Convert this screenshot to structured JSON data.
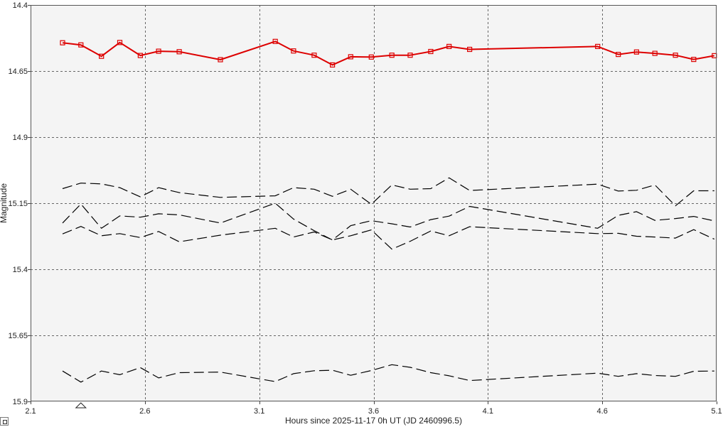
{
  "chart_data": {
    "type": "line",
    "title": "",
    "xlabel": "Hours since 2025-11-17 0h UT (JD 2460996.5)",
    "ylabel": "Magnitude",
    "xlim": [
      2.1,
      5.1
    ],
    "ylim": [
      14.4,
      15.9
    ],
    "y_inverted": true,
    "x_ticks": [
      "2.1",
      "2.6",
      "3.1",
      "3.6",
      "4.1",
      "4.6",
      "5.1"
    ],
    "y_ticks": [
      "14.4",
      "14.65",
      "14.9",
      "15.15",
      "15.4",
      "15.65",
      "15.9"
    ],
    "grid": true,
    "marker_x": 2.32,
    "colors": {
      "target": "#dd0000",
      "comparison": "#000000",
      "plot_background": "#f4f4f4"
    },
    "series": [
      {
        "style": "solid-square-markers",
        "color": "#dd0000",
        "x": [
          2.24,
          2.32,
          2.41,
          2.49,
          2.58,
          2.66,
          2.75,
          2.93,
          3.17,
          3.25,
          3.34,
          3.42,
          3.5,
          3.59,
          3.68,
          3.76,
          3.85,
          3.93,
          4.02,
          4.58,
          4.67,
          4.75,
          4.83,
          4.92,
          5.0,
          5.09
        ],
        "y": [
          14.543,
          14.551,
          14.594,
          14.542,
          14.591,
          14.575,
          14.577,
          14.607,
          14.538,
          14.574,
          14.59,
          14.627,
          14.596,
          14.597,
          14.59,
          14.59,
          14.576,
          14.557,
          14.568,
          14.557,
          14.587,
          14.578,
          14.583,
          14.59,
          14.606,
          14.592
        ]
      },
      {
        "style": "dashed",
        "color": "#000000",
        "x": [
          2.24,
          2.32,
          2.41,
          2.49,
          2.58,
          2.66,
          2.75,
          2.93,
          3.17,
          3.25,
          3.34,
          3.42,
          3.5,
          3.59,
          3.68,
          3.76,
          3.85,
          3.93,
          4.02,
          4.58,
          4.67,
          4.75,
          4.83,
          4.92,
          5.0,
          5.09
        ],
        "y": [
          15.095,
          15.074,
          15.077,
          15.091,
          15.126,
          15.091,
          15.11,
          15.128,
          15.122,
          15.091,
          15.097,
          15.124,
          15.097,
          15.154,
          15.081,
          15.097,
          15.095,
          15.054,
          15.102,
          15.078,
          15.104,
          15.101,
          15.081,
          15.16,
          15.103,
          15.103
        ]
      },
      {
        "style": "dashed",
        "color": "#000000",
        "x": [
          2.24,
          2.32,
          2.41,
          2.49,
          2.58,
          2.66,
          2.75,
          2.93,
          3.17,
          3.25,
          3.34,
          3.42,
          3.5,
          3.59,
          3.68,
          3.76,
          3.85,
          3.93,
          4.02,
          4.58,
          4.67,
          4.75,
          4.83,
          4.92,
          5.0,
          5.09
        ],
        "y": [
          15.225,
          15.153,
          15.245,
          15.198,
          15.203,
          15.19,
          15.194,
          15.225,
          15.15,
          15.21,
          15.254,
          15.289,
          15.235,
          15.216,
          15.228,
          15.24,
          15.212,
          15.199,
          15.162,
          15.245,
          15.196,
          15.182,
          15.215,
          15.208,
          15.2,
          15.217
        ]
      },
      {
        "style": "dashed",
        "color": "#000000",
        "x": [
          2.24,
          2.32,
          2.41,
          2.49,
          2.58,
          2.66,
          2.75,
          2.93,
          3.17,
          3.25,
          3.34,
          3.42,
          3.5,
          3.59,
          3.68,
          3.76,
          3.85,
          3.93,
          4.02,
          4.58,
          4.67,
          4.75,
          4.83,
          4.92,
          5.0,
          5.09
        ],
        "y": [
          15.266,
          15.238,
          15.273,
          15.265,
          15.28,
          15.257,
          15.296,
          15.271,
          15.245,
          15.278,
          15.259,
          15.289,
          15.273,
          15.251,
          15.324,
          15.294,
          15.255,
          15.273,
          15.239,
          15.265,
          15.264,
          15.275,
          15.278,
          15.282,
          15.25,
          15.286
        ]
      },
      {
        "style": "dashed",
        "color": "#000000",
        "x": [
          2.24,
          2.32,
          2.41,
          2.49,
          2.58,
          2.66,
          2.75,
          2.93,
          3.17,
          3.25,
          3.34,
          3.42,
          3.5,
          3.59,
          3.68,
          3.76,
          3.85,
          3.93,
          4.02,
          4.58,
          4.67,
          4.75,
          4.83,
          4.92,
          5.0,
          5.09
        ],
        "y": [
          15.785,
          15.827,
          15.785,
          15.799,
          15.772,
          15.811,
          15.791,
          15.789,
          15.825,
          15.795,
          15.784,
          15.782,
          15.801,
          15.783,
          15.761,
          15.771,
          15.791,
          15.803,
          15.821,
          15.793,
          15.805,
          15.795,
          15.802,
          15.805,
          15.786,
          15.785
        ]
      }
    ]
  }
}
